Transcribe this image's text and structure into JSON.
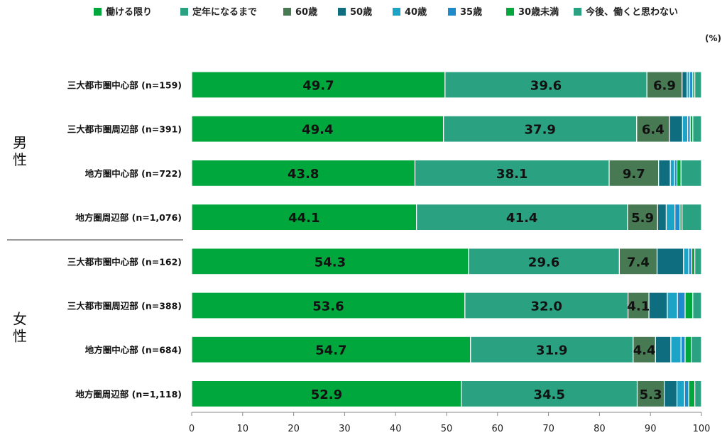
{
  "chart_data": {
    "type": "bar",
    "orientation": "horizontal",
    "stacked": true,
    "unit": "(%)",
    "xlim": [
      0,
      100
    ],
    "xticks": [
      "0",
      "10",
      "20",
      "30",
      "40",
      "50",
      "60",
      "70",
      "80",
      "90",
      "100"
    ],
    "groups": [
      {
        "label": "男性",
        "categories": [
          0,
          1,
          2,
          3
        ]
      },
      {
        "label": "女性",
        "categories": [
          4,
          5,
          6,
          7
        ]
      }
    ],
    "categories": [
      "三大都市圏中心部 (n=159)",
      "三大都市圏周辺部 (n=391)",
      "地方圏中心部 (n=722)",
      "地方圏周辺部 (n=1,076)",
      "三大都市圏中心部 (n=162)",
      "三大都市圏周辺部 (n=388)",
      "地方圏中心部 (n=684)",
      "地方圏周辺部 (n=1,118)"
    ],
    "series": [
      {
        "name": "働ける限り",
        "color": "#00a73c",
        "values": [
          49.7,
          49.4,
          43.8,
          44.1,
          54.3,
          53.6,
          54.7,
          52.9
        ]
      },
      {
        "name": "定年になるまで",
        "color": "#2aa281",
        "values": [
          39.6,
          37.9,
          38.1,
          41.4,
          29.6,
          32.0,
          31.9,
          34.5
        ]
      },
      {
        "name": "60歳",
        "color": "#477a52",
        "values": [
          6.9,
          6.4,
          9.7,
          5.9,
          7.4,
          4.1,
          4.4,
          5.3
        ]
      },
      {
        "name": "50歳",
        "color": "#0e6e80",
        "values": [
          1.0,
          2.6,
          2.3,
          1.7,
          5.2,
          3.6,
          3.0,
          2.5
        ]
      },
      {
        "name": "40歳",
        "color": "#1ba4c6",
        "values": [
          0.5,
          1.0,
          0.8,
          1.7,
          1.0,
          2.0,
          2.0,
          1.5
        ]
      },
      {
        "name": "35歳",
        "color": "#1f8bcc",
        "values": [
          0.6,
          0.5,
          0.5,
          1.0,
          0.6,
          1.5,
          0.8,
          0.8
        ]
      },
      {
        "name": "30歳未満",
        "color": "#00a73c",
        "values": [
          0.4,
          0.5,
          0.8,
          0.4,
          0.6,
          1.5,
          1.2,
          1.2
        ]
      },
      {
        "name": "今後、働くと思わない",
        "color": "#2aa281",
        "values": [
          1.3,
          1.7,
          4.0,
          3.8,
          1.3,
          1.7,
          2.0,
          1.3
        ]
      }
    ],
    "data_labels": [
      [
        "49.7",
        "39.6",
        "6.9"
      ],
      [
        "49.4",
        "37.9",
        "6.4"
      ],
      [
        "43.8",
        "38.1",
        "9.7"
      ],
      [
        "44.1",
        "41.4",
        "5.9"
      ],
      [
        "54.3",
        "29.6",
        "7.4"
      ],
      [
        "53.6",
        "32.0",
        "4.1"
      ],
      [
        "54.7",
        "31.9",
        "4.4"
      ],
      [
        "52.9",
        "34.5",
        "5.3"
      ]
    ],
    "legend_position": "top",
    "grid": false
  }
}
